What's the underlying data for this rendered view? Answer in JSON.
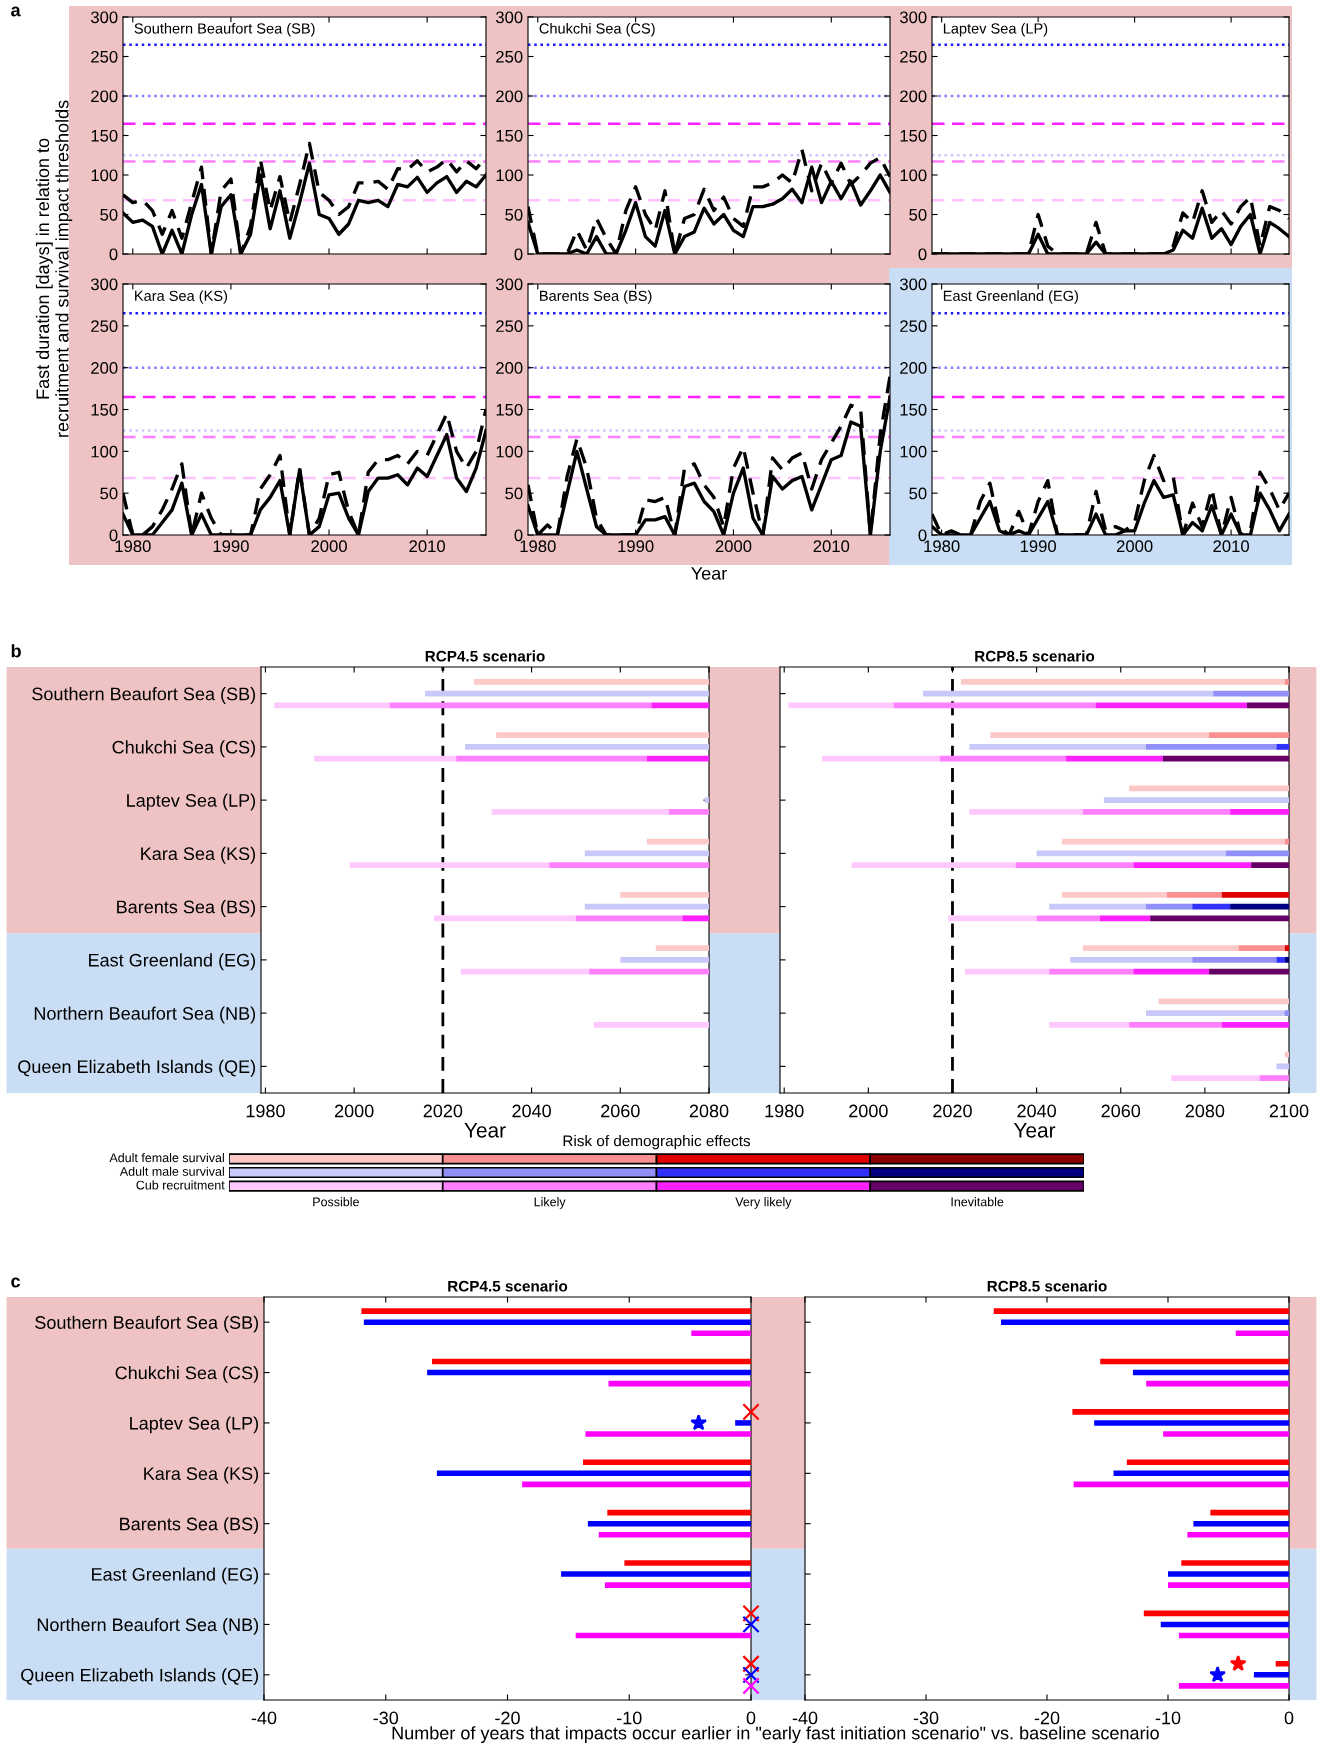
{
  "chart_data": [
    {
      "type": "line",
      "title": "Southern Beaufort Sea (SB)",
      "ylabel": "Fast duration [days] in relation to\nrecruitment and survival impact thresholds",
      "annotations": [
        "a"
      ],
      "xlim": [
        1979,
        2016
      ],
      "xticks": [
        1980,
        1990,
        2000,
        2010
      ],
      "ylim": [
        0,
        300
      ],
      "yticks": [
        0,
        50,
        100,
        150,
        200,
        250,
        300
      ],
      "tick_labels": "y",
      "x": [
        1979,
        1980,
        1981,
        1982,
        1983,
        1984,
        1985,
        1986,
        1987,
        1988,
        1989,
        1990,
        1991,
        1992,
        1993,
        1994,
        1995,
        1996,
        1997,
        1998,
        1999,
        2000,
        2001,
        2002,
        2003,
        2004,
        2005,
        2006,
        2007,
        2008,
        2009,
        2010,
        2011,
        2012,
        2013,
        2014,
        2015,
        2016
      ],
      "series": [
        {
          "color": "#000000",
          "line_style": "solid",
          "values": [
            52,
            40,
            43,
            35,
            0,
            30,
            0,
            50,
            88,
            0,
            60,
            75,
            0,
            25,
            100,
            32,
            80,
            20,
            65,
            115,
            50,
            45,
            25,
            38,
            68,
            65,
            68,
            60,
            88,
            85,
            97,
            78,
            90,
            98,
            78,
            92,
            85,
            100
          ]
        },
        {
          "color": "#000000",
          "line_style": "dashed",
          "values": [
            75,
            65,
            68,
            55,
            25,
            55,
            20,
            65,
            110,
            0,
            80,
            95,
            0,
            35,
            120,
            55,
            98,
            40,
            88,
            140,
            78,
            68,
            50,
            60,
            90,
            90,
            92,
            82,
            108,
            107,
            118,
            104,
            110,
            120,
            104,
            118,
            108,
            122
          ]
        }
      ],
      "ref_lines": [
        {
          "axis": "y",
          "value": 265,
          "color": "#1a1aff",
          "line_style": "dotted"
        },
        {
          "axis": "y",
          "value": 200,
          "color": "#8080ff",
          "line_style": "dotted"
        },
        {
          "axis": "y",
          "value": 165,
          "color": "#ff22ff",
          "line_style": "dashed"
        },
        {
          "axis": "y",
          "value": 125,
          "color": "#c8c8ff",
          "line_style": "dotted"
        },
        {
          "axis": "y",
          "value": 117,
          "color": "#ff7fff",
          "line_style": "dashed"
        },
        {
          "axis": "y",
          "value": 68,
          "color": "#ffc0ff",
          "line_style": "dashed"
        }
      ]
    },
    {
      "type": "line",
      "title": "Chukchi Sea (CS)",
      "xlim": [
        1979,
        2016
      ],
      "xticks": [
        1980,
        1990,
        2000,
        2010
      ],
      "ylim": [
        0,
        300
      ],
      "yticks": [
        0,
        50,
        100,
        150,
        200,
        250,
        300
      ],
      "tick_labels": "y",
      "x": [
        1979,
        1980,
        1981,
        1982,
        1983,
        1984,
        1985,
        1986,
        1987,
        1988,
        1989,
        1990,
        1991,
        1992,
        1993,
        1994,
        1995,
        1996,
        1997,
        1998,
        1999,
        2000,
        2001,
        2002,
        2003,
        2004,
        2005,
        2006,
        2007,
        2008,
        2009,
        2010,
        2011,
        2012,
        2013,
        2014,
        2015,
        2016
      ],
      "series": [
        {
          "color": "#000000",
          "line_style": "solid",
          "values": [
            40,
            0,
            0,
            0,
            0,
            5,
            0,
            22,
            0,
            0,
            30,
            65,
            22,
            10,
            55,
            0,
            22,
            28,
            58,
            38,
            50,
            30,
            22,
            60,
            60,
            63,
            70,
            82,
            65,
            110,
            65,
            92,
            70,
            92,
            62,
            80,
            100,
            78
          ]
        },
        {
          "color": "#000000",
          "line_style": "dashed",
          "values": [
            60,
            0,
            0,
            0,
            0,
            30,
            5,
            45,
            20,
            0,
            55,
            85,
            50,
            30,
            80,
            0,
            45,
            50,
            82,
            55,
            72,
            45,
            35,
            85,
            85,
            90,
            100,
            90,
            132,
            80,
            115,
            90,
            115,
            88,
            100,
            115,
            122,
            98
          ]
        }
      ],
      "ref_lines": [
        {
          "axis": "y",
          "value": 265,
          "color": "#1a1aff",
          "line_style": "dotted"
        },
        {
          "axis": "y",
          "value": 200,
          "color": "#8080ff",
          "line_style": "dotted"
        },
        {
          "axis": "y",
          "value": 165,
          "color": "#ff22ff",
          "line_style": "dashed"
        },
        {
          "axis": "y",
          "value": 125,
          "color": "#c8c8ff",
          "line_style": "dotted"
        },
        {
          "axis": "y",
          "value": 117,
          "color": "#ff7fff",
          "line_style": "dashed"
        },
        {
          "axis": "y",
          "value": 68,
          "color": "#ffc0ff",
          "line_style": "dashed"
        }
      ]
    },
    {
      "type": "line",
      "title": "Laptev Sea (LP)",
      "xlim": [
        1979,
        2016
      ],
      "xticks": [
        1980,
        1990,
        2000,
        2010
      ],
      "ylim": [
        0,
        300
      ],
      "yticks": [
        0,
        50,
        100,
        150,
        200,
        250,
        300
      ],
      "tick_labels": "y",
      "x": [
        1979,
        1980,
        1981,
        1982,
        1983,
        1984,
        1985,
        1986,
        1987,
        1988,
        1989,
        1990,
        1991,
        1992,
        1993,
        1994,
        1995,
        1996,
        1997,
        1998,
        1999,
        2000,
        2001,
        2002,
        2003,
        2004,
        2005,
        2006,
        2007,
        2008,
        2009,
        2010,
        2011,
        2012,
        2013,
        2014,
        2015,
        2016
      ],
      "series": [
        {
          "color": "#000000",
          "line_style": "solid",
          "values": [
            0,
            0,
            0,
            0,
            0,
            0,
            0,
            0,
            0,
            0,
            0,
            25,
            0,
            0,
            0,
            0,
            0,
            15,
            0,
            0,
            0,
            0,
            0,
            0,
            0,
            5,
            30,
            20,
            58,
            20,
            32,
            12,
            35,
            50,
            0,
            40,
            32,
            22
          ]
        },
        {
          "color": "#000000",
          "line_style": "dashed",
          "values": [
            0,
            0,
            0,
            0,
            0,
            0,
            0,
            0,
            0,
            0,
            0,
            50,
            10,
            0,
            0,
            0,
            0,
            40,
            0,
            0,
            0,
            0,
            0,
            0,
            0,
            10,
            52,
            40,
            80,
            40,
            55,
            38,
            60,
            72,
            10,
            60,
            55,
            45
          ]
        }
      ],
      "ref_lines": [
        {
          "axis": "y",
          "value": 265,
          "color": "#1a1aff",
          "line_style": "dotted"
        },
        {
          "axis": "y",
          "value": 200,
          "color": "#8080ff",
          "line_style": "dotted"
        },
        {
          "axis": "y",
          "value": 165,
          "color": "#ff22ff",
          "line_style": "dashed"
        },
        {
          "axis": "y",
          "value": 125,
          "color": "#c8c8ff",
          "line_style": "dotted"
        },
        {
          "axis": "y",
          "value": 117,
          "color": "#ff7fff",
          "line_style": "dashed"
        },
        {
          "axis": "y",
          "value": 68,
          "color": "#ffc0ff",
          "line_style": "dashed"
        }
      ]
    },
    {
      "type": "line",
      "title": "Kara Sea (KS)",
      "xlim": [
        1979,
        2016
      ],
      "xticks": [
        1980,
        1990,
        2000,
        2010
      ],
      "ylim": [
        0,
        300
      ],
      "yticks": [
        0,
        50,
        100,
        150,
        200,
        250,
        300
      ],
      "x": [
        1979,
        1980,
        1981,
        1982,
        1983,
        1984,
        1985,
        1986,
        1987,
        1988,
        1989,
        1990,
        1991,
        1992,
        1993,
        1994,
        1995,
        1996,
        1997,
        1998,
        1999,
        2000,
        2001,
        2002,
        2003,
        2004,
        2005,
        2006,
        2007,
        2008,
        2009,
        2010,
        2011,
        2012,
        2013,
        2014,
        2015,
        2016
      ],
      "series": [
        {
          "color": "#000000",
          "line_style": "solid",
          "values": [
            25,
            0,
            0,
            0,
            15,
            30,
            62,
            0,
            25,
            0,
            0,
            0,
            0,
            0,
            30,
            45,
            65,
            0,
            78,
            0,
            10,
            48,
            50,
            20,
            0,
            52,
            68,
            68,
            72,
            60,
            80,
            70,
            95,
            120,
            68,
            52,
            80,
            125
          ]
        },
        {
          "color": "#000000",
          "line_style": "dashed",
          "values": [
            50,
            0,
            0,
            10,
            30,
            55,
            85,
            0,
            50,
            20,
            0,
            0,
            0,
            0,
            55,
            72,
            95,
            0,
            80,
            0,
            20,
            72,
            75,
            28,
            0,
            75,
            90,
            90,
            95,
            85,
            100,
            95,
            120,
            145,
            100,
            80,
            100,
            150
          ]
        }
      ],
      "ref_lines": [
        {
          "axis": "y",
          "value": 265,
          "color": "#1a1aff",
          "line_style": "dotted"
        },
        {
          "axis": "y",
          "value": 200,
          "color": "#8080ff",
          "line_style": "dotted"
        },
        {
          "axis": "y",
          "value": 165,
          "color": "#ff22ff",
          "line_style": "dashed"
        },
        {
          "axis": "y",
          "value": 125,
          "color": "#c8c8ff",
          "line_style": "dotted"
        },
        {
          "axis": "y",
          "value": 117,
          "color": "#ff7fff",
          "line_style": "dashed"
        },
        {
          "axis": "y",
          "value": 68,
          "color": "#ffc0ff",
          "line_style": "dashed"
        }
      ]
    },
    {
      "type": "line",
      "title": "Barents Sea (BS)",
      "xlabel": "Year",
      "xlim": [
        1979,
        2016
      ],
      "xticks": [
        1980,
        1990,
        2000,
        2010
      ],
      "ylim": [
        0,
        300
      ],
      "yticks": [
        0,
        50,
        100,
        150,
        200,
        250,
        300
      ],
      "x": [
        1979,
        1980,
        1981,
        1982,
        1983,
        1984,
        1985,
        1986,
        1987,
        1988,
        1989,
        1990,
        1991,
        1992,
        1993,
        1994,
        1995,
        1996,
        1997,
        1998,
        1999,
        2000,
        2001,
        2002,
        2003,
        2004,
        2005,
        2006,
        2007,
        2008,
        2009,
        2010,
        2011,
        2012,
        2013,
        2014,
        2015,
        2016
      ],
      "series": [
        {
          "color": "#000000",
          "line_style": "solid",
          "values": [
            35,
            0,
            0,
            0,
            50,
            100,
            55,
            10,
            0,
            0,
            0,
            0,
            18,
            18,
            22,
            0,
            58,
            62,
            40,
            28,
            0,
            50,
            80,
            20,
            0,
            70,
            55,
            65,
            70,
            30,
            60,
            90,
            95,
            135,
            130,
            0,
            100,
            165
          ]
        },
        {
          "color": "#000000",
          "line_style": "dashed",
          "values": [
            60,
            0,
            12,
            0,
            70,
            115,
            80,
            20,
            0,
            0,
            0,
            0,
            42,
            40,
            45,
            0,
            80,
            85,
            60,
            45,
            10,
            80,
            105,
            50,
            0,
            92,
            78,
            92,
            98,
            55,
            90,
            110,
            130,
            155,
            150,
            0,
            120,
            190
          ]
        }
      ],
      "ref_lines": [
        {
          "axis": "y",
          "value": 265,
          "color": "#1a1aff",
          "line_style": "dotted"
        },
        {
          "axis": "y",
          "value": 200,
          "color": "#8080ff",
          "line_style": "dotted"
        },
        {
          "axis": "y",
          "value": 165,
          "color": "#ff22ff",
          "line_style": "dashed"
        },
        {
          "axis": "y",
          "value": 125,
          "color": "#c8c8ff",
          "line_style": "dotted"
        },
        {
          "axis": "y",
          "value": 117,
          "color": "#ff7fff",
          "line_style": "dashed"
        },
        {
          "axis": "y",
          "value": 68,
          "color": "#ffc0ff",
          "line_style": "dashed"
        }
      ]
    },
    {
      "type": "line",
      "title": "East Greenland (EG)",
      "xlim": [
        1979,
        2016
      ],
      "xticks": [
        1980,
        1990,
        2000,
        2010
      ],
      "ylim": [
        0,
        300
      ],
      "yticks": [
        0,
        50,
        100,
        150,
        200,
        250,
        300
      ],
      "x": [
        1979,
        1980,
        1981,
        1982,
        1983,
        1984,
        1985,
        1986,
        1987,
        1988,
        1989,
        1990,
        1991,
        1992,
        1993,
        1994,
        1995,
        1996,
        1997,
        1998,
        1999,
        2000,
        2001,
        2002,
        2003,
        2004,
        2005,
        2006,
        2007,
        2008,
        2009,
        2010,
        2011,
        2012,
        2013,
        2014,
        2015,
        2016
      ],
      "series": [
        {
          "color": "#000000",
          "line_style": "solid",
          "values": [
            10,
            0,
            0,
            0,
            0,
            20,
            40,
            5,
            0,
            5,
            0,
            20,
            40,
            0,
            0,
            0,
            0,
            25,
            0,
            0,
            5,
            5,
            38,
            65,
            45,
            48,
            0,
            15,
            5,
            35,
            0,
            25,
            0,
            0,
            50,
            30,
            5,
            25
          ]
        },
        {
          "color": "#000000",
          "line_style": "dashed",
          "values": [
            25,
            0,
            5,
            0,
            0,
            40,
            62,
            10,
            0,
            28,
            0,
            40,
            65,
            0,
            0,
            0,
            0,
            52,
            5,
            10,
            5,
            15,
            65,
            95,
            65,
            70,
            0,
            38,
            10,
            55,
            0,
            45,
            0,
            5,
            75,
            55,
            30,
            50
          ]
        }
      ],
      "ref_lines": [
        {
          "axis": "y",
          "value": 265,
          "color": "#1a1aff",
          "line_style": "dotted"
        },
        {
          "axis": "y",
          "value": 200,
          "color": "#8080ff",
          "line_style": "dotted"
        },
        {
          "axis": "y",
          "value": 165,
          "color": "#ff22ff",
          "line_style": "dashed"
        },
        {
          "axis": "y",
          "value": 125,
          "color": "#c8c8ff",
          "line_style": "dotted"
        },
        {
          "axis": "y",
          "value": 117,
          "color": "#ff7fff",
          "line_style": "dashed"
        },
        {
          "axis": "y",
          "value": 68,
          "color": "#ffc0ff",
          "line_style": "dashed"
        }
      ]
    },
    {
      "type": "bar",
      "orientation": "horizontal",
      "title": "RCP4.5 scenario",
      "xlabel": "Year",
      "annotations": [
        "b"
      ],
      "xlim": [
        1979,
        2080
      ],
      "xticks": [
        1980,
        2000,
        2020,
        2040,
        2060,
        2080
      ],
      "categories": [
        "Southern Beaufort Sea (SB)",
        "Chukchi Sea (CS)",
        "Laptev Sea (LP)",
        "Kara Sea (KS)",
        "Barents Sea (BS)",
        "East Greenland (EG)",
        "Northern Beaufort Sea (NB)",
        "Queen Elizabeth Islands (QE)"
      ],
      "series": [
        {
          "color": "#fcc8c8",
          "base": [
            2027,
            2032,
            null,
            2066,
            2060,
            2068,
            null,
            null
          ],
          "values": [
            53,
            48,
            null,
            14,
            20,
            12,
            null,
            null
          ]
        },
        {
          "color": "#c8c8fa",
          "base": [
            2016,
            2025,
            2079,
            2052,
            2052,
            2060,
            null,
            null
          ],
          "values": [
            64,
            55,
            1,
            28,
            28,
            20,
            null,
            null
          ]
        },
        {
          "color": "#ffc8ff",
          "base": [
            1982,
            1991,
            2031,
            1999,
            2018,
            2024,
            2054,
            null
          ],
          "values": [
            26,
            32,
            40,
            45,
            32,
            29,
            26,
            null
          ]
        },
        {
          "color": "#ff80ff",
          "base": [
            2008,
            2023,
            2071,
            2044,
            2050,
            2053,
            null,
            null
          ],
          "values": [
            59,
            43,
            9,
            36,
            24,
            27,
            null,
            null
          ]
        },
        {
          "color": "#ff20ff",
          "base": [
            2067,
            2066,
            null,
            null,
            2074,
            null,
            null,
            null
          ],
          "values": [
            13,
            14,
            null,
            null,
            6,
            null,
            null,
            null
          ]
        }
      ],
      "ref_lines": [
        {
          "axis": "x",
          "value": 2020,
          "color": "#000000",
          "line_style": "dashed"
        }
      ]
    },
    {
      "type": "bar",
      "orientation": "horizontal",
      "title": "RCP8.5 scenario",
      "xlabel": "Year",
      "xlim": [
        1979,
        2100
      ],
      "xticks": [
        1980,
        2000,
        2020,
        2040,
        2060,
        2080,
        2100
      ],
      "categories": [
        null,
        null,
        null,
        null,
        null,
        null,
        null,
        null
      ],
      "series": [
        {
          "color": "#fcc8c8",
          "base": [
            2022,
            2029,
            2062,
            2046,
            2046,
            2051,
            2069,
            2099
          ],
          "values": [
            77,
            52,
            38,
            53,
            25,
            37,
            31,
            1
          ]
        },
        {
          "color": "#fa9090",
          "base": [
            2099,
            2081,
            null,
            2099,
            2071,
            2088,
            null,
            null
          ],
          "values": [
            1,
            19,
            null,
            1,
            13,
            11,
            null,
            null
          ]
        },
        {
          "color": "#e00000",
          "base": [
            null,
            null,
            null,
            null,
            2084,
            2099,
            null,
            null
          ],
          "values": [
            null,
            null,
            null,
            null,
            16,
            1,
            null,
            null
          ]
        },
        {
          "color": "#c8c8fa",
          "base": [
            2013,
            2024,
            2056,
            2040,
            2043,
            2048,
            2066,
            2097
          ],
          "values": [
            69,
            42,
            44,
            45,
            23,
            29,
            33,
            3
          ]
        },
        {
          "color": "#9090f8",
          "base": [
            2082,
            2066,
            null,
            2085,
            2066,
            2077,
            2099,
            null
          ],
          "values": [
            18,
            31,
            null,
            15,
            11,
            20,
            1,
            null
          ]
        },
        {
          "color": "#3030ff",
          "base": [
            null,
            2097,
            null,
            null,
            2077,
            2097,
            null,
            null
          ],
          "values": [
            null,
            3,
            null,
            null,
            9,
            2,
            null,
            null
          ]
        },
        {
          "color": "#000080",
          "base": [
            null,
            null,
            null,
            null,
            2086,
            2099,
            null,
            null
          ],
          "values": [
            null,
            null,
            null,
            null,
            14,
            1,
            null,
            null
          ]
        },
        {
          "color": "#ffc8ff",
          "base": [
            1981,
            1989,
            2024,
            1996,
            2019,
            2023,
            2043,
            2072
          ],
          "values": [
            25,
            28,
            27,
            39,
            21,
            20,
            19,
            21
          ]
        },
        {
          "color": "#ff80ff",
          "base": [
            2006,
            2017,
            2051,
            2035,
            2040,
            2043,
            2062,
            2093
          ],
          "values": [
            48,
            30,
            35,
            28,
            15,
            20,
            22,
            7
          ]
        },
        {
          "color": "#ff20ff",
          "base": [
            2054,
            2047,
            2086,
            2063,
            2055,
            2063,
            2084,
            null
          ],
          "values": [
            36,
            23,
            14,
            28,
            12,
            18,
            16,
            null
          ]
        },
        {
          "color": "#660066",
          "base": [
            2090,
            2070,
            null,
            2091,
            2067,
            2081,
            null,
            null
          ],
          "values": [
            10,
            30,
            null,
            9,
            33,
            19,
            null,
            null
          ]
        }
      ],
      "ref_lines": [
        {
          "axis": "x",
          "value": 2020,
          "color": "#000000",
          "line_style": "dashed"
        }
      ]
    },
    {
      "type": "other",
      "title": "Risk of demographic effects",
      "categories": [
        "Possible",
        "Likely",
        "Very likely",
        "Inevitable"
      ],
      "y_categories": [
        "Adult female survival",
        "Adult male survival",
        "Cub recruitment"
      ],
      "colors": [
        [
          "#fcc8c8",
          "#fa9090",
          "#e00000",
          "#8b0000"
        ],
        [
          "#c8c8fa",
          "#9090f8",
          "#3030ff",
          "#000080"
        ],
        [
          "#ffc8ff",
          "#ff80ff",
          "#ff20ff",
          "#660066"
        ]
      ]
    },
    {
      "type": "bar",
      "orientation": "horizontal",
      "title": "RCP4.5 scenario",
      "xlabel": "Number of years that impacts occur earlier in \"early fast initiation scenario\" vs. baseline scenario",
      "annotations": [
        "c"
      ],
      "xlim": [
        -40,
        0
      ],
      "xticks": [
        -40,
        -30,
        -20,
        -10,
        0
      ],
      "categories": [
        "Southern Beaufort Sea (SB)",
        "Chukchi Sea (CS)",
        "Laptev Sea (LP)",
        "Kara Sea (KS)",
        "Barents Sea (BS)",
        "East Greenland (EG)",
        "Northern Beaufort Sea (NB)",
        "Queen Elizabeth Islands (QE)"
      ],
      "series": [
        {
          "color": "#ff0000",
          "values": [
            -32.0,
            -26.2,
            null,
            -13.8,
            -11.8,
            -10.4,
            null,
            null
          ]
        },
        {
          "color": "#0000ff",
          "values": [
            -31.8,
            -26.6,
            -1.3,
            -25.8,
            -13.4,
            -15.6,
            null,
            null
          ]
        },
        {
          "color": "#ff00ff",
          "values": [
            -4.9,
            -11.7,
            -13.6,
            -18.8,
            -12.5,
            -12.0,
            -14.4,
            null
          ]
        },
        {
          "type": "scatter",
          "marker": "cross",
          "color": "#ff0000",
          "values": [
            null,
            null,
            0,
            null,
            null,
            null,
            0,
            0
          ]
        },
        {
          "type": "scatter",
          "marker": "cross",
          "color": "#0000ff",
          "values": [
            null,
            null,
            null,
            null,
            null,
            null,
            0,
            0
          ]
        },
        {
          "type": "scatter",
          "marker": "cross",
          "color": "#ff00ff",
          "values": [
            null,
            null,
            null,
            null,
            null,
            null,
            null,
            0
          ]
        },
        {
          "type": "scatter",
          "marker": "star",
          "color": "#0000ff",
          "values": [
            null,
            null,
            -4.3,
            null,
            null,
            null,
            null,
            null
          ]
        }
      ]
    },
    {
      "type": "bar",
      "orientation": "horizontal",
      "title": "RCP8.5 scenario",
      "xlim": [
        -40,
        0
      ],
      "xticks": [
        -40,
        -30,
        -20,
        -10,
        0
      ],
      "categories": [
        null,
        null,
        null,
        null,
        null,
        null,
        null,
        null
      ],
      "series": [
        {
          "color": "#ff0000",
          "values": [
            -24.4,
            -15.6,
            -17.9,
            -13.4,
            -6.5,
            -8.9,
            -12.0,
            -1.1
          ]
        },
        {
          "color": "#0000ff",
          "values": [
            -23.8,
            -12.9,
            -16.1,
            -14.5,
            -7.9,
            -10.0,
            -10.6,
            -2.9
          ]
        },
        {
          "color": "#ff00ff",
          "values": [
            -4.4,
            -11.8,
            -10.4,
            -17.8,
            -8.4,
            -10.0,
            -9.1,
            -9.1
          ]
        },
        {
          "type": "scatter",
          "marker": "star",
          "color": "#ff0000",
          "values": [
            null,
            null,
            null,
            null,
            null,
            null,
            null,
            -4.2
          ]
        },
        {
          "type": "scatter",
          "marker": "star",
          "color": "#0000ff",
          "values": [
            null,
            null,
            null,
            null,
            null,
            null,
            null,
            -5.9
          ]
        }
      ]
    }
  ]
}
